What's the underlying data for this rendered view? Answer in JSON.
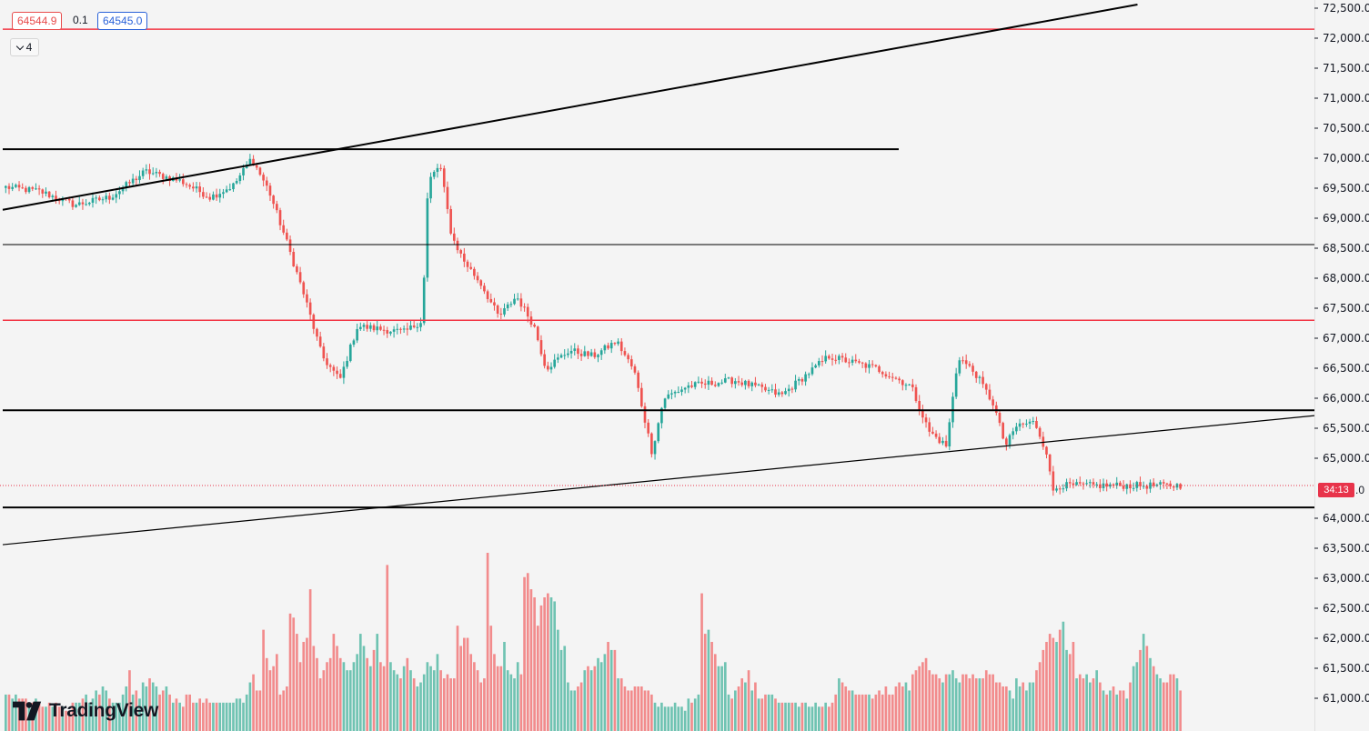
{
  "toolbar": {
    "bid_price": "64544.9",
    "spread": "0.1",
    "ask_price": "64545.0",
    "indicators_count": "4"
  },
  "countdown": "34:13",
  "price_label_tail": ".0",
  "logo": {
    "text": "TradingView"
  },
  "colors": {
    "background": "#f4f4f4",
    "up": "#26a69a",
    "down": "#ef5350",
    "volume_up": "#6fc3b2",
    "volume_down": "#f28b8c",
    "horizontal_red": "#f23645",
    "drawing_black": "#000000",
    "current_price": "#e8334a"
  },
  "chart_data": {
    "type": "candlestick",
    "y_axis": {
      "min": 61000,
      "max": 72500,
      "ticks": [
        "72,500.0",
        "72,000.0",
        "71,500.0",
        "71,000.0",
        "70,500.0",
        "70,000.0",
        "69,500.0",
        "69,000.0",
        "68,500.0",
        "68,000.0",
        "67,500.0",
        "67,000.0",
        "66,500.0",
        "66,000.0",
        "65,500.0",
        "65,000.0",
        "64,000.0",
        "63,500.0",
        "63,000.0",
        "62,500.0",
        "62,000.0",
        "61,500.0",
        "61,000.0"
      ]
    },
    "current_price": 64545.0,
    "horizontal_levels": [
      {
        "price": 72150,
        "color": "red",
        "extent": "full"
      },
      {
        "price": 70150,
        "color": "black",
        "extent": "partial"
      },
      {
        "price": 68560,
        "color": "black",
        "extent": "full"
      },
      {
        "price": 67300,
        "color": "red",
        "extent": "full"
      },
      {
        "price": 65800,
        "color": "black",
        "extent": "full"
      },
      {
        "price": 64180,
        "color": "black",
        "extent": "full"
      }
    ],
    "trendlines": [
      {
        "from": [
          0,
          69140
        ],
        "to": [
          0.8651,
          72560
        ]
      },
      {
        "from": [
          0,
          63560
        ],
        "to": [
          1.0,
          65710
        ]
      }
    ],
    "price_path": [
      [
        0,
        69520
      ],
      [
        0.03,
        69450
      ],
      [
        0.06,
        69220
      ],
      [
        0.09,
        69350
      ],
      [
        0.12,
        69780
      ],
      [
        0.15,
        69620
      ],
      [
        0.175,
        69350
      ],
      [
        0.195,
        69550
      ],
      [
        0.21,
        70000
      ],
      [
        0.225,
        69450
      ],
      [
        0.24,
        68600
      ],
      [
        0.255,
        67700
      ],
      [
        0.27,
        66700
      ],
      [
        0.285,
        66300
      ],
      [
        0.3,
        67200
      ],
      [
        0.32,
        67150
      ],
      [
        0.34,
        67100
      ],
      [
        0.355,
        67300
      ],
      [
        0.36,
        69600
      ],
      [
        0.37,
        69900
      ],
      [
        0.38,
        68700
      ],
      [
        0.39,
        68300
      ],
      [
        0.405,
        67900
      ],
      [
        0.42,
        67350
      ],
      [
        0.435,
        67700
      ],
      [
        0.45,
        67200
      ],
      [
        0.46,
        66500
      ],
      [
        0.48,
        66800
      ],
      [
        0.5,
        66700
      ],
      [
        0.52,
        66950
      ],
      [
        0.535,
        66450
      ],
      [
        0.55,
        65100
      ],
      [
        0.56,
        66000
      ],
      [
        0.58,
        66200
      ],
      [
        0.62,
        66300
      ],
      [
        0.66,
        66050
      ],
      [
        0.7,
        66700
      ],
      [
        0.74,
        66500
      ],
      [
        0.77,
        66200
      ],
      [
        0.785,
        65450
      ],
      [
        0.8,
        65200
      ],
      [
        0.81,
        66700
      ],
      [
        0.825,
        66400
      ],
      [
        0.84,
        65900
      ],
      [
        0.85,
        65200
      ],
      [
        0.86,
        65550
      ],
      [
        0.875,
        65600
      ],
      [
        0.885,
        65100
      ],
      [
        0.89,
        64450
      ],
      [
        0.895,
        64545
      ]
    ],
    "volume": [
      9,
      9,
      8,
      9,
      8,
      8,
      8,
      7,
      7,
      8,
      7,
      6,
      6,
      7,
      6,
      7,
      6,
      6,
      5,
      5,
      7,
      7,
      7,
      8,
      9,
      7,
      8,
      10,
      9,
      11,
      10,
      8,
      7,
      7,
      7,
      9,
      11,
      15,
      9,
      10,
      8,
      12,
      11,
      13,
      12,
      11,
      9,
      10,
      11,
      9,
      7,
      8,
      7,
      6,
      9,
      9,
      7,
      7,
      8,
      7,
      8,
      7,
      7,
      7,
      7,
      7,
      7,
      7,
      7,
      8,
      8,
      7,
      9,
      12,
      14,
      10,
      10,
      25,
      18,
      15,
      16,
      19,
      9,
      10,
      11,
      29,
      28,
      24,
      17,
      22,
      23,
      35,
      21,
      18,
      13,
      15,
      17,
      18,
      24,
      21,
      18,
      17,
      15,
      15,
      17,
      19,
      24,
      21,
      18,
      16,
      20,
      24,
      17,
      16,
      41,
      17,
      15,
      14,
      13,
      16,
      18,
      15,
      13,
      11,
      12,
      14,
      17,
      16,
      15,
      19,
      15,
      13,
      14,
      13,
      13,
      26,
      21,
      23,
      23,
      19,
      17,
      15,
      12,
      13,
      44,
      26,
      19,
      16,
      16,
      22,
      15,
      14,
      13,
      17,
      14,
      38,
      39,
      35,
      33,
      26,
      31,
      33,
      34,
      33,
      32,
      25,
      20,
      21,
      12,
      10,
      10,
      11,
      12,
      15,
      16,
      15,
      16,
      18,
      17,
      19,
      22,
      20,
      20,
      13,
      13,
      11,
      10,
      10,
      11,
      11,
      11,
      10,
      10,
      9,
      7,
      6,
      7,
      6,
      6,
      6,
      7,
      6,
      6,
      5,
      8,
      7,
      8,
      9,
      34,
      24,
      25,
      22,
      19,
      16,
      16,
      17,
      9,
      8,
      10,
      11,
      13,
      12,
      15,
      10,
      12,
      8,
      8,
      9,
      9,
      9,
      8,
      7,
      7,
      7,
      7,
      7,
      7,
      6,
      7,
      7,
      6,
      6,
      7,
      6,
      6,
      7,
      6,
      7,
      9,
      13,
      12,
      11,
      10,
      10,
      9,
      9,
      9,
      9,
      9,
      8,
      9,
      10,
      9,
      11,
      9,
      9,
      11,
      12,
      11,
      12,
      10,
      14,
      15,
      16,
      17,
      18,
      15,
      14,
      14,
      13,
      12,
      14,
      14,
      15,
      13,
      12,
      14,
      14,
      13,
      14,
      13,
      13,
      13,
      15,
      14,
      14,
      12,
      12,
      11,
      11,
      10,
      8,
      13,
      11,
      12,
      10,
      12,
      12,
      15,
      17,
      20,
      22,
      24,
      23,
      22,
      25,
      27,
      20,
      19,
      22,
      13,
      14,
      13,
      14,
      12,
      13,
      15,
      12,
      10,
      9,
      10,
      11,
      9,
      10,
      10,
      8,
      12,
      16,
      17,
      20,
      24,
      21,
      18,
      16,
      14,
      13,
      12,
      12,
      14,
      14,
      13,
      10
    ]
  }
}
